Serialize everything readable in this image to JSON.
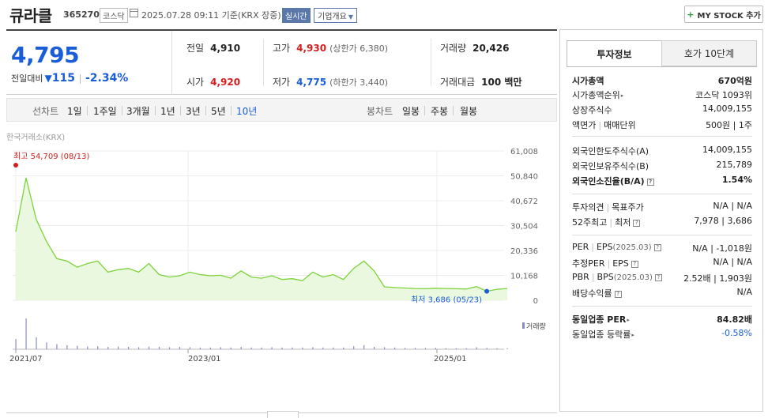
{
  "header": {
    "name": "큐라클",
    "code": "365270",
    "market": "코스닥",
    "datetime": "2025.07.28 09:11 기준(KRX 장중)",
    "realtime_label": "실시간",
    "company_label": "기업개요",
    "mystock_label": "MY STOCK 추가"
  },
  "price": {
    "current": "4,795",
    "change_label": "전일대비",
    "change": "115",
    "change_pct": "-2.34%",
    "prev_close_label": "전일",
    "prev_close": "4,910",
    "high_label": "고가",
    "high": "4,930",
    "upper_limit": "(상한가 6,380)",
    "volume_label": "거래량",
    "volume": "20,426",
    "open_label": "시가",
    "open": "4,920",
    "low_label": "저가",
    "low": "4,775",
    "lower_limit": "(하한가 3,440)",
    "amount_label": "거래대금",
    "amount": "100 백만"
  },
  "periods": {
    "line_label": "선차트",
    "line_items": [
      "1일",
      "1주일",
      "3개월",
      "1년",
      "3년",
      "5년",
      "10년"
    ],
    "candle_label": "봉차트",
    "candle_items": [
      "일봉",
      "주봉",
      "월봉"
    ]
  },
  "chart": {
    "source": "한국거래소(KRX)",
    "high_label": "최고 54,709 (08/13)",
    "low_label": "최저 3,686 (05/23)",
    "volume_legend": "거래량",
    "colors": {
      "line": "#7dd33a",
      "fill": "#e9f8df",
      "high": "#d51d1d",
      "low": "#1a5dd8"
    }
  },
  "chart_data": {
    "type": "area",
    "ylim": [
      0,
      61008
    ],
    "y_ticks": [
      "61,008",
      "50,840",
      "40,672",
      "30,504",
      "20,336",
      "10,168",
      "0"
    ],
    "x_labels": [
      "2021/07",
      "2023/01",
      "2025/01"
    ],
    "x": [
      "2021/07",
      "2021/08",
      "2021/09",
      "2021/10",
      "2021/11",
      "2021/12",
      "2022/01",
      "2022/02",
      "2022/03",
      "2022/04",
      "2022/05",
      "2022/06",
      "2022/07",
      "2022/08",
      "2022/09",
      "2022/10",
      "2022/11",
      "2022/12",
      "2023/01",
      "2023/02",
      "2023/03",
      "2023/04",
      "2023/05",
      "2023/06",
      "2023/07",
      "2023/08",
      "2023/09",
      "2023/10",
      "2023/11",
      "2023/12",
      "2024/01",
      "2024/02",
      "2024/03",
      "2024/04",
      "2024/05",
      "2024/06",
      "2024/07",
      "2024/08",
      "2024/09",
      "2024/10",
      "2024/11",
      "2024/12",
      "2025/01",
      "2025/02",
      "2025/03",
      "2025/04",
      "2025/05",
      "2025/06",
      "2025/07"
    ],
    "values": [
      28000,
      50000,
      33000,
      24000,
      17000,
      16000,
      13500,
      15000,
      16000,
      11500,
      12500,
      13000,
      11500,
      15000,
      10500,
      9500,
      10000,
      11500,
      10500,
      10000,
      10200,
      9000,
      12000,
      9500,
      9000,
      10000,
      8500,
      8800,
      8000,
      11500,
      9500,
      10500,
      8500,
      13000,
      16000,
      12000,
      5500,
      5200,
      5000,
      4800,
      4700,
      4900,
      4800,
      4700,
      4600,
      5600,
      3686,
      4500,
      4795
    ],
    "volume": [
      30,
      90,
      35,
      20,
      15,
      12,
      10,
      8,
      9,
      7,
      8,
      7,
      6,
      8,
      7,
      6,
      7,
      6,
      5,
      5,
      6,
      5,
      7,
      5,
      5,
      6,
      5,
      5,
      5,
      6,
      5,
      5,
      5,
      9,
      12,
      7,
      6,
      5,
      4,
      4,
      4,
      4,
      3,
      3,
      3,
      6,
      4,
      3,
      3
    ],
    "max": {
      "label": "최고",
      "value": 54709,
      "date": "08/13"
    },
    "min": {
      "label": "최저",
      "value": 3686,
      "date": "05/23"
    }
  },
  "info": {
    "tab1": "투자정보",
    "tab2": "호가 10단계",
    "rows": [
      {
        "k": "시가총액",
        "v": "670억원"
      },
      {
        "k": "시가총액순위",
        "v": "코스닥 1093위"
      },
      {
        "k": "상장주식수",
        "v": "14,009,155"
      },
      {
        "k1": "액면가",
        "k2": "매매단위",
        "v": "500원 | 1주"
      },
      {
        "k": "외국인한도주식수(A)",
        "v": "14,009,155"
      },
      {
        "k": "외국인보유주식수(B)",
        "v": "215,789"
      },
      {
        "k": "외국인소진율(B/A)",
        "v": "1.54%"
      },
      {
        "k1": "투자의견",
        "k2": "목표주가",
        "v": "N/A | N/A"
      },
      {
        "k1": "52주최고",
        "k2": "최저",
        "v": "7,978 | 3,686"
      },
      {
        "k1": "PER",
        "k2": "EPS",
        "yr": "(2025.03)",
        "v": "N/A | -1,018원"
      },
      {
        "k1": "추정PER",
        "k2": "EPS",
        "v": "N/A | N/A"
      },
      {
        "k1": "PBR",
        "k2": "BPS",
        "yr": "(2025.03)",
        "v": "2.52배 | 1,903원"
      },
      {
        "k": "배당수익률",
        "v": "N/A"
      },
      {
        "k": "동일업종 PER",
        "v": "84.82배"
      },
      {
        "k": "동일업종 등락률",
        "v": "-0.58%"
      }
    ]
  }
}
